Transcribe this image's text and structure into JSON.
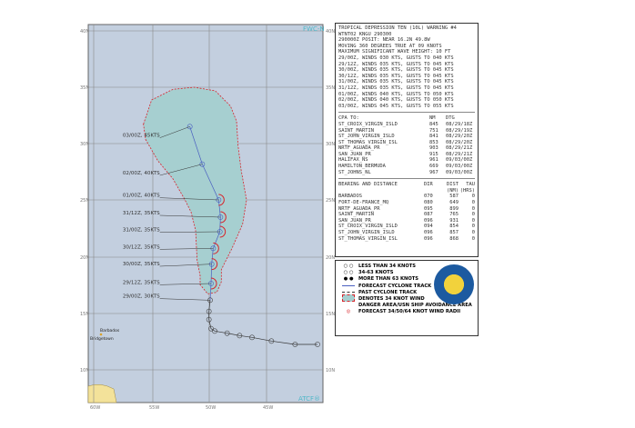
{
  "map": {
    "corner_top": "FWC-N",
    "corner_bottom": "ATCF®",
    "lat_labels": [
      "40N",
      "35N",
      "30N",
      "25N",
      "20N",
      "15N",
      "10N"
    ],
    "lon_labels": [
      "60W",
      "55W",
      "50W",
      "45W"
    ],
    "places": [
      "Barbados",
      "Bridgetown"
    ],
    "track_labels": [
      "03/00Z, 45KTS",
      "02/00Z, 40KTS",
      "01/00Z, 40KTS",
      "31/12Z, 35KTS",
      "31/00Z, 35KTS",
      "30/12Z, 35KTS",
      "30/00Z, 35KTS",
      "29/12Z, 35KTS",
      "29/00Z, 30KTS"
    ],
    "colors": {
      "ocean": "#c3cfdf",
      "danger": "#a6cfd0",
      "radii": "#d8232a",
      "forecast": "#4a5fc0",
      "land": "#f3e29a"
    }
  },
  "warning": {
    "title": "TROPICAL DEPRESSION TEN (10L) WARNING #4",
    "lines": [
      "WTNT02 KNGU 290300",
      "290000Z POSIT: NEAR 16.2N 49.8W",
      "MOVING 360 DEGREES TRUE AT 09 KNOTS",
      "MAXIMUM SIGNIFICANT WAVE HEIGHT: 10 FT"
    ],
    "forecasts": [
      "29/00Z, WINDS 030 KTS, GUSTS TO 040 KTS",
      "29/12Z, WINDS 035 KTS, GUSTS TO 045 KTS",
      "30/00Z, WINDS 035 KTS, GUSTS TO 045 KTS",
      "30/12Z, WINDS 035 KTS, GUSTS TO 045 KTS",
      "31/00Z, WINDS 035 KTS, GUSTS TO 045 KTS",
      "31/12Z, WINDS 035 KTS, GUSTS TO 045 KTS",
      "01/00Z, WINDS 040 KTS, GUSTS TO 050 KTS",
      "02/00Z, WINDS 040 KTS, GUSTS TO 050 KTS",
      "03/00Z, WINDS 045 KTS, GUSTS TO 055 KTS"
    ]
  },
  "cpa": {
    "headers": [
      "CPA TO:",
      "NM",
      "DTG"
    ],
    "rows": [
      [
        "ST_CROIX_VIRGIN_ISLD",
        "845",
        "08/29/18Z"
      ],
      [
        "SAINT_MARTIN",
        "751",
        "08/29/19Z"
      ],
      [
        "ST_JOHN_VIRGIN_ISLD",
        "841",
        "08/29/20Z"
      ],
      [
        "ST_THOMAS_VIRGIN_ISL",
        "853",
        "08/29/20Z"
      ],
      [
        "NRTF_AGUADA_PR",
        "903",
        "08/29/21Z"
      ],
      [
        "SAN_JUAN_PR",
        "915",
        "08/29/21Z"
      ],
      [
        "HALIFAX_NS",
        "961",
        "09/03/00Z"
      ],
      [
        "HAMILTON_BERMUDA",
        "669",
        "09/03/00Z"
      ],
      [
        "ST_JOHNS_NL",
        "967",
        "09/03/00Z"
      ]
    ]
  },
  "bearing": {
    "headers": [
      "BEARING AND DISTANCE",
      "DIR",
      "DIST",
      "TAU"
    ],
    "units": [
      "(NM)",
      "(HRS)"
    ],
    "rows": [
      [
        "BARBADOS",
        "070",
        "587",
        "0"
      ],
      [
        "FORT-DE-FRANCE_MQ",
        "080",
        "649",
        "0"
      ],
      [
        "NRTF_AGUADA_PR",
        "095",
        "899",
        "0"
      ],
      [
        "SAINT_MARTIN",
        "087",
        "765",
        "0"
      ],
      [
        "SAN_JUAN_PR",
        "096",
        "931",
        "0"
      ],
      [
        "ST_CROIX_VIRGIN_ISLD",
        "094",
        "854",
        "0"
      ],
      [
        "ST_JOHN_VIRGIN_ISLD",
        "096",
        "857",
        "0"
      ],
      [
        "ST_THOMAS_VIRGIN_ISL",
        "096",
        "868",
        "0"
      ]
    ]
  },
  "legend": [
    "LESS THAN 34 KNOTS",
    "34-63 KNOTS",
    "MORE THAN 63 KNOTS",
    "FORECAST CYCLONE TRACK",
    "PAST CYCLONE TRACK",
    "DENOTES 34 KNOT WIND",
    "DANGER AREA/USN SHIP AVOIDANCE AREA",
    "FORECAST 34/50/64 KNOT WIND RADII"
  ]
}
